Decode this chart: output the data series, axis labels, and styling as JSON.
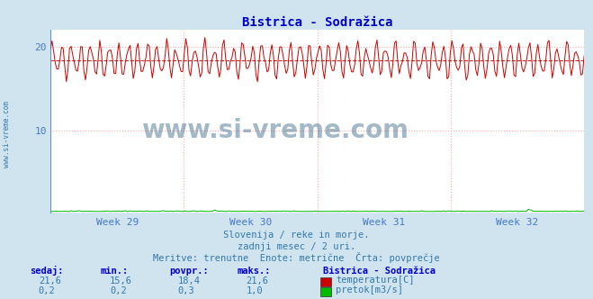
{
  "title": "Bistrica - Sodražica",
  "title_color": "#0000cc",
  "background_color": "#d0e4f0",
  "plot_background": "#ffffff",
  "grid_color": "#ffaaaa",
  "grid_style": ":",
  "spine_color": "#4477cc",
  "tick_color": "#4477cc",
  "text_color": "#3377aa",
  "xlim_days": 28,
  "ylim": [
    0,
    22
  ],
  "yticks": [
    10,
    20
  ],
  "week_labels": [
    "Week 29",
    "Week 30",
    "Week 31",
    "Week 32"
  ],
  "temp_color": "#cc0000",
  "pretok_color": "#00bb00",
  "avg_temp": 18.4,
  "avg_line_color": "#cc0000",
  "avg_line_style": "--",
  "temp_min": 15.6,
  "temp_max": 21.6,
  "pretok_min": 0.2,
  "pretok_max": 1.0,
  "pretok_avg": 0.3,
  "n_points": 336,
  "subtitle1": "Slovenija / reke in morje.",
  "subtitle2": "zadnji mesec / 2 uri.",
  "subtitle3": "Meritve: trenutne  Enote: metrične  Črta: povprečje",
  "watermark": "www.si-vreme.com",
  "watermark_color": "#1a5276",
  "legend_title": "Bistrica - Sodražica",
  "legend_entries": [
    "temperatura[C]",
    "pretok[m3/s]"
  ],
  "legend_colors": [
    "#cc0000",
    "#00bb00"
  ],
  "table_headers": [
    "sedaj:",
    "min.:",
    "povpr.:",
    "maks.:"
  ],
  "table_row1": [
    "21,6",
    "15,6",
    "18,4",
    "21,6"
  ],
  "table_row2": [
    "0,2",
    "0,2",
    "0,3",
    "1,0"
  ]
}
